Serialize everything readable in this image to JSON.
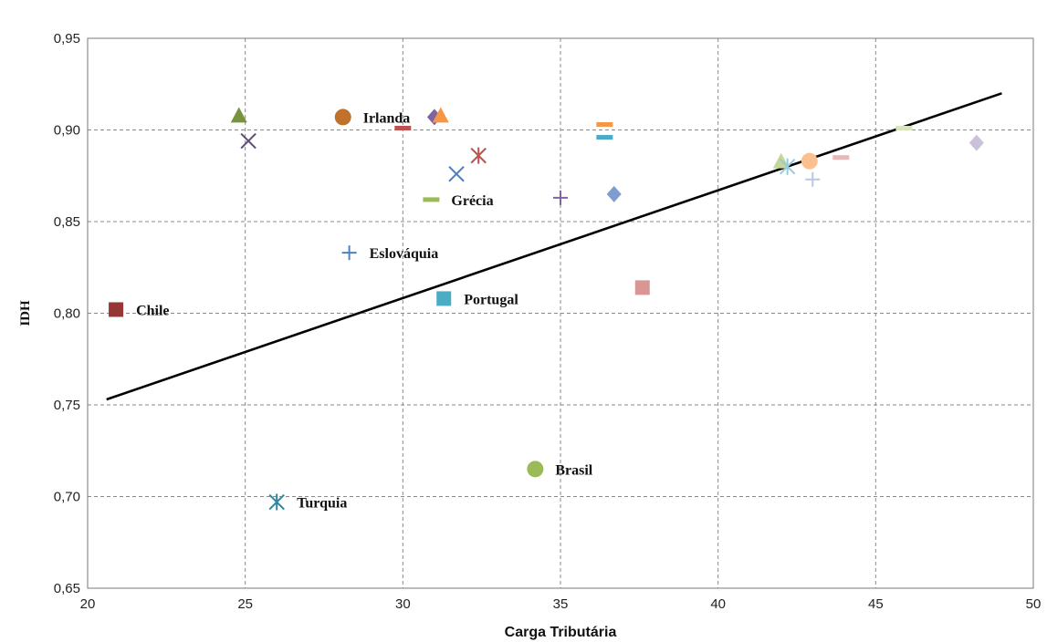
{
  "chart_data": {
    "type": "scatter",
    "title": "",
    "xlabel": "Carga Tributária",
    "ylabel": "IDH",
    "xlim": [
      20,
      50
    ],
    "ylim": [
      0.65,
      0.95
    ],
    "x_ticks": [
      20,
      25,
      30,
      35,
      40,
      45,
      50
    ],
    "x_tick_labels": [
      "20",
      "25",
      "30",
      "35",
      "40",
      "45",
      "50"
    ],
    "y_ticks": [
      0.65,
      0.7,
      0.75,
      0.8,
      0.85,
      0.9,
      0.95
    ],
    "y_tick_labels": [
      "0,65",
      "0,70",
      "0,75",
      "0,80",
      "0,85",
      "0,90",
      "0,95"
    ],
    "grid": true,
    "legend": "none",
    "trendline": {
      "x": [
        20.6,
        49.0
      ],
      "y": [
        0.753,
        0.92
      ]
    },
    "points": [
      {
        "x": 20.9,
        "y": 0.802,
        "label": "Chile",
        "marker": "square",
        "color": "#953735"
      },
      {
        "x": 24.8,
        "y": 0.908,
        "label": "",
        "marker": "triangle",
        "color": "#77933c"
      },
      {
        "x": 25.1,
        "y": 0.894,
        "label": "",
        "marker": "x",
        "color": "#604a7b"
      },
      {
        "x": 26.0,
        "y": 0.697,
        "label": "Turquia",
        "marker": "star",
        "color": "#31859c"
      },
      {
        "x": 28.1,
        "y": 0.907,
        "label": "Irlanda",
        "marker": "circle",
        "color": "#c0722c"
      },
      {
        "x": 28.3,
        "y": 0.833,
        "label": "Eslováquia",
        "marker": "plus",
        "color": "#4f81bd"
      },
      {
        "x": 30.0,
        "y": 0.901,
        "label": "",
        "marker": "dash",
        "color": "#c0504d"
      },
      {
        "x": 30.9,
        "y": 0.862,
        "label": "Grécia",
        "marker": "dash",
        "color": "#9bbb59"
      },
      {
        "x": 31.0,
        "y": 0.907,
        "label": "",
        "marker": "diamond",
        "color": "#8064a2"
      },
      {
        "x": 31.2,
        "y": 0.908,
        "label": "",
        "marker": "triangle",
        "color": "#f79646"
      },
      {
        "x": 31.3,
        "y": 0.808,
        "label": "Portugal",
        "marker": "square",
        "color": "#4bacc6"
      },
      {
        "x": 31.7,
        "y": 0.876,
        "label": "",
        "marker": "x",
        "color": "#4f81bd"
      },
      {
        "x": 32.4,
        "y": 0.886,
        "label": "",
        "marker": "star",
        "color": "#c0504d"
      },
      {
        "x": 34.2,
        "y": 0.715,
        "label": "Brasil",
        "marker": "circle",
        "color": "#9bbb59"
      },
      {
        "x": 35.0,
        "y": 0.863,
        "label": "",
        "marker": "plus",
        "color": "#8064a2"
      },
      {
        "x": 36.4,
        "y": 0.903,
        "label": "",
        "marker": "dash",
        "color": "#f79646"
      },
      {
        "x": 36.4,
        "y": 0.896,
        "label": "",
        "marker": "dash",
        "color": "#4bacc6"
      },
      {
        "x": 36.7,
        "y": 0.865,
        "label": "",
        "marker": "diamond",
        "color": "#7f9cd1"
      },
      {
        "x": 37.6,
        "y": 0.814,
        "label": "",
        "marker": "square",
        "color": "#d99694"
      },
      {
        "x": 42.0,
        "y": 0.883,
        "label": "",
        "marker": "triangle",
        "color": "#c3d69b"
      },
      {
        "x": 42.2,
        "y": 0.88,
        "label": "",
        "marker": "star",
        "color": "#93cddd"
      },
      {
        "x": 42.9,
        "y": 0.883,
        "label": "",
        "marker": "circle",
        "color": "#fac08f"
      },
      {
        "x": 43.0,
        "y": 0.873,
        "label": "",
        "marker": "plus",
        "color": "#b9c7e1"
      },
      {
        "x": 43.9,
        "y": 0.885,
        "label": "",
        "marker": "dash",
        "color": "#e6b9b8"
      },
      {
        "x": 45.9,
        "y": 0.901,
        "label": "",
        "marker": "dash",
        "color": "#d7e4bd"
      },
      {
        "x": 48.2,
        "y": 0.893,
        "label": "",
        "marker": "diamond",
        "color": "#ccc1da"
      }
    ]
  }
}
